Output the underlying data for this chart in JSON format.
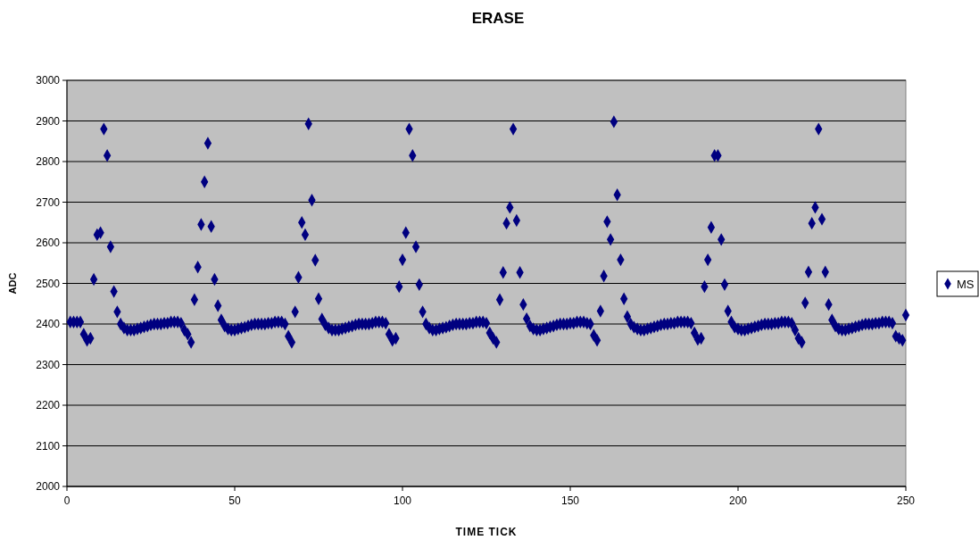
{
  "chart_data": {
    "type": "scatter",
    "title": "ERASE",
    "xlabel": "TIME TICK",
    "ylabel": "ADC",
    "xlim": [
      0,
      250
    ],
    "xticks": [
      0,
      50,
      100,
      150,
      200,
      250
    ],
    "ylim": [
      2000,
      3000
    ],
    "yticks": [
      2000,
      2100,
      2200,
      2300,
      2400,
      2500,
      2600,
      2700,
      2800,
      2900,
      3000
    ],
    "grid": "y",
    "legend": "right",
    "marker": "diamond",
    "x": [
      1,
      2,
      3,
      4,
      5,
      6,
      7,
      8,
      9,
      10,
      11,
      12,
      13,
      14,
      15,
      16,
      17,
      18,
      19,
      20,
      21,
      22,
      23,
      24,
      25,
      26,
      27,
      28,
      29,
      30,
      31,
      32,
      33,
      34,
      35,
      36,
      37,
      38,
      39,
      40,
      41,
      42,
      43,
      44,
      45,
      46,
      47,
      48,
      49,
      50,
      51,
      52,
      53,
      54,
      55,
      56,
      57,
      58,
      59,
      60,
      61,
      62,
      63,
      64,
      65,
      66,
      67,
      68,
      69,
      70,
      71,
      72,
      73,
      74,
      75,
      76,
      77,
      78,
      79,
      80,
      81,
      82,
      83,
      84,
      85,
      86,
      87,
      88,
      89,
      90,
      91,
      92,
      93,
      94,
      95,
      96,
      97,
      98,
      99,
      100,
      101,
      102,
      103,
      104,
      105,
      106,
      107,
      108,
      109,
      110,
      111,
      112,
      113,
      114,
      115,
      116,
      117,
      118,
      119,
      120,
      121,
      122,
      123,
      124,
      125,
      126,
      127,
      128,
      129,
      130,
      131,
      132,
      133,
      134,
      135,
      136,
      137,
      138,
      139,
      140,
      141,
      142,
      143,
      144,
      145,
      146,
      147,
      148,
      149,
      150,
      151,
      152,
      153,
      154,
      155,
      156,
      157,
      158,
      159,
      160,
      161,
      162,
      163,
      164,
      165,
      166,
      167,
      168,
      169,
      170,
      171,
      172,
      173,
      174,
      175,
      176,
      177,
      178,
      179,
      180,
      181,
      182,
      183,
      184,
      185,
      186,
      187,
      188,
      189,
      190,
      191,
      192,
      193,
      194,
      195,
      196,
      197,
      198,
      199,
      200,
      201,
      202,
      203,
      204,
      205,
      206,
      207,
      208,
      209,
      210,
      211,
      212,
      213,
      214,
      215,
      216,
      217,
      218,
      219,
      220,
      221,
      222,
      223,
      224,
      225,
      226,
      227,
      228,
      229,
      230,
      231,
      232,
      233,
      234,
      235,
      236,
      237,
      238,
      239,
      240,
      241,
      242,
      243,
      244,
      245,
      246,
      247,
      248,
      249,
      250
    ],
    "series": [
      {
        "name": "MS",
        "color": "#000080",
        "values": [
          2405,
          2405,
          2405,
          2405,
          2375,
          2360,
          2365,
          2510,
          2620,
          2625,
          2880,
          2815,
          2590,
          2480,
          2430,
          2400,
          2390,
          2385,
          2385,
          2385,
          2388,
          2390,
          2393,
          2395,
          2398,
          2400,
          2400,
          2400,
          2402,
          2402,
          2405,
          2405,
          2405,
          2402,
          2385,
          2375,
          2355,
          2460,
          2540,
          2645,
          2750,
          2845,
          2640,
          2510,
          2445,
          2410,
          2395,
          2388,
          2385,
          2385,
          2388,
          2390,
          2392,
          2395,
          2398,
          2400,
          2400,
          2400,
          2400,
          2402,
          2402,
          2405,
          2405,
          2405,
          2400,
          2370,
          2355,
          2430,
          2515,
          2650,
          2620,
          2893,
          2705,
          2557,
          2462,
          2412,
          2398,
          2390,
          2385,
          2385,
          2385,
          2388,
          2390,
          2393,
          2395,
          2398,
          2400,
          2400,
          2400,
          2400,
          2402,
          2405,
          2405,
          2405,
          2402,
          2375,
          2360,
          2365,
          2492,
          2558,
          2625,
          2880,
          2815,
          2590,
          2497,
          2430,
          2400,
          2390,
          2385,
          2385,
          2388,
          2390,
          2392,
          2395,
          2398,
          2400,
          2400,
          2400,
          2400,
          2402,
          2402,
          2405,
          2405,
          2405,
          2402,
          2378,
          2365,
          2355,
          2460,
          2527,
          2648,
          2687,
          2880,
          2655,
          2527,
          2448,
          2413,
          2395,
          2388,
          2385,
          2385,
          2388,
          2390,
          2393,
          2395,
          2398,
          2400,
          2400,
          2400,
          2402,
          2402,
          2405,
          2405,
          2405,
          2402,
          2400,
          2372,
          2360,
          2432,
          2518,
          2652,
          2608,
          2898,
          2718,
          2558,
          2462,
          2418,
          2400,
          2392,
          2388,
          2385,
          2385,
          2388,
          2390,
          2393,
          2395,
          2398,
          2400,
          2400,
          2402,
          2402,
          2405,
          2405,
          2405,
          2405,
          2402,
          2378,
          2362,
          2365,
          2492,
          2558,
          2638,
          2815,
          2815,
          2608,
          2497,
          2432,
          2405,
          2392,
          2388,
          2385,
          2385,
          2388,
          2390,
          2393,
          2395,
          2398,
          2400,
          2400,
          2400,
          2402,
          2402,
          2405,
          2405,
          2405,
          2402,
          2385,
          2365,
          2355,
          2452,
          2528,
          2648,
          2687,
          2880,
          2658,
          2528,
          2448,
          2410,
          2395,
          2388,
          2385,
          2385,
          2388,
          2390,
          2393,
          2395,
          2398,
          2400,
          2400,
          2400,
          2402,
          2402,
          2405,
          2405,
          2405,
          2402,
          2370,
          2365,
          2360,
          2422
        ]
      }
    ]
  }
}
